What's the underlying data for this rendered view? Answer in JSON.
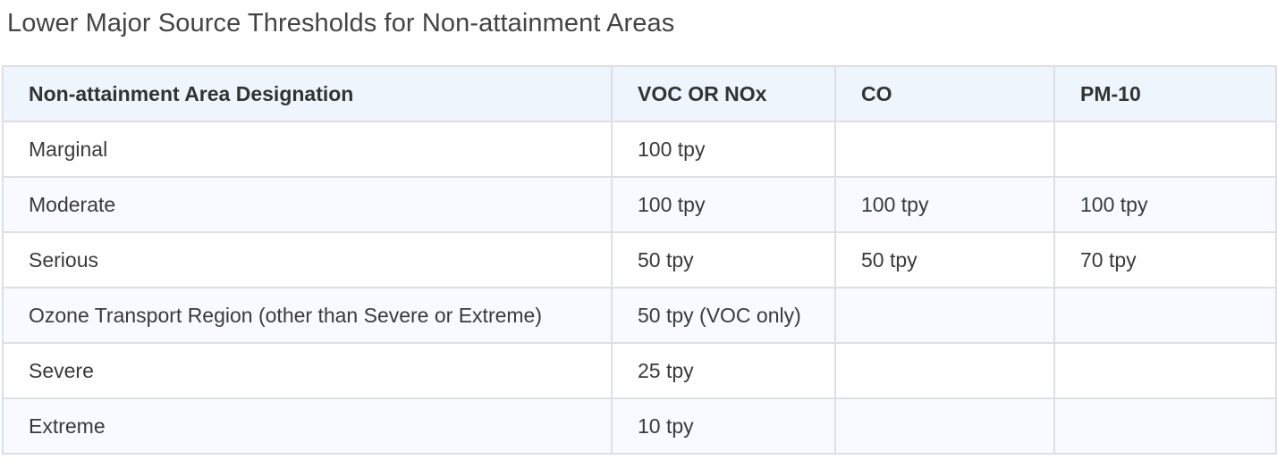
{
  "title": "Lower Major Source Thresholds for Non-attainment Areas",
  "table": {
    "headers": [
      "Non-attainment Area Designation",
      "VOC OR NOx",
      "CO",
      "PM-10"
    ],
    "rows": [
      [
        "Marginal",
        "100 tpy",
        "",
        ""
      ],
      [
        "Moderate",
        "100 tpy",
        "100 tpy",
        "100 tpy"
      ],
      [
        "Serious",
        "50 tpy",
        "50 tpy",
        "70 tpy"
      ],
      [
        "Ozone Transport Region (other than Severe or Extreme)",
        "50 tpy (VOC only)",
        "",
        ""
      ],
      [
        "Severe",
        "25 tpy",
        "",
        ""
      ],
      [
        "Extreme",
        "10 tpy",
        "",
        ""
      ]
    ]
  },
  "colors": {
    "header_bg": "#eef5fd",
    "alt_row_bg": "#f7faff",
    "border": "#dcdfe3"
  }
}
